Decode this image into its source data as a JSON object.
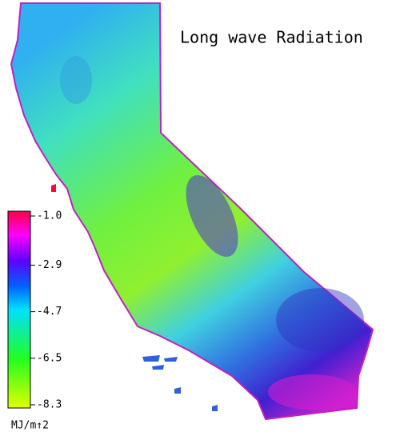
{
  "title": "Long wave Radiation",
  "colorbar": {
    "ticks": [
      {
        "value": -1.0,
        "label": "-1.0"
      },
      -2.9,
      -4.7,
      -6.5,
      -8.3
    ],
    "unit": "MJ/m↑2"
  }
}
